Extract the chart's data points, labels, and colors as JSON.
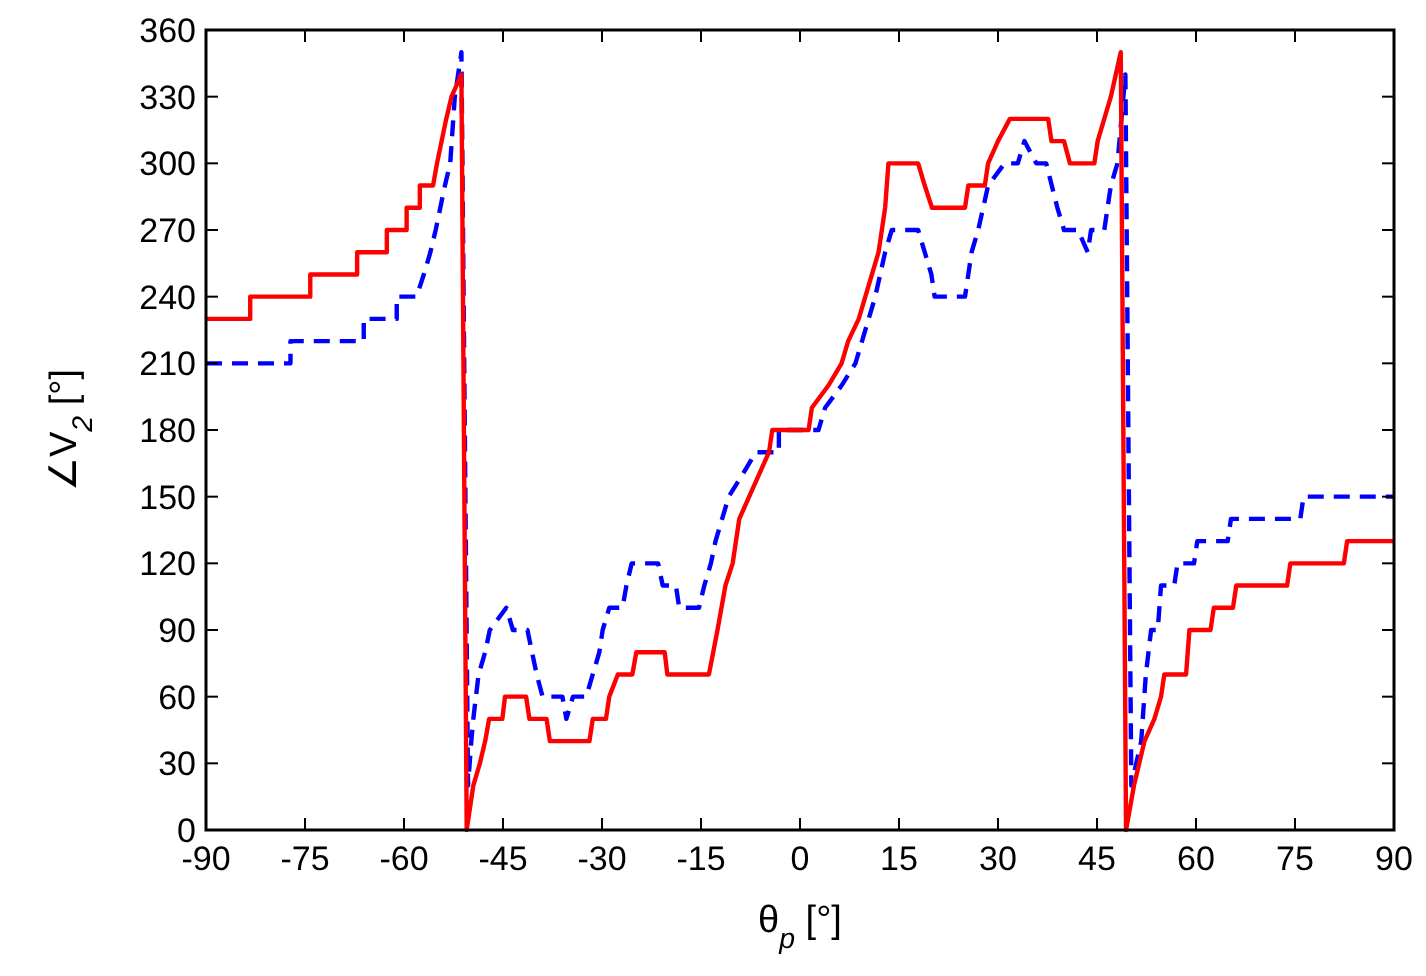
{
  "chart_data": {
    "type": "line",
    "xlabel": "θ$_{p}$ [°]",
    "ylabel": "∠V$_{2}$ [°]",
    "xlim": [
      -90,
      90
    ],
    "xticks": [
      -90,
      -75,
      -60,
      -45,
      -30,
      -15,
      0,
      15,
      30,
      45,
      60,
      75,
      90
    ],
    "ylim": [
      0,
      360
    ],
    "yticks": [
      0,
      30,
      60,
      90,
      120,
      150,
      180,
      210,
      240,
      270,
      300,
      330,
      360
    ],
    "grid": false,
    "series": [
      {
        "color": "#0000ff",
        "line_style": "dashed",
        "x": [
          -90,
          -77.2,
          -77.2,
          -66.1,
          -66.1,
          -61.1,
          -61.1,
          -58.1,
          -57,
          -56,
          -55.2,
          -54.5,
          -53.8,
          -53,
          -52.3,
          -51.3,
          -50.3,
          -49.8,
          -49.5,
          -48.7,
          -47.7,
          -47,
          -44.5,
          -43.5,
          -41.3,
          -40.6,
          -39.9,
          -39,
          -36,
          -35.4,
          -34.4,
          -32.4,
          -31.4,
          -30.4,
          -29.9,
          -28.9,
          -26.9,
          -26.3,
          -25.5,
          -21.5,
          -20.8,
          -18.8,
          -18.3,
          -15.3,
          -14.5,
          -13.5,
          -12.8,
          -11.8,
          -10.8,
          -8.7,
          -6.7,
          -3.2,
          -3.2,
          2.8,
          3.8,
          6.3,
          8.4,
          9.4,
          11.4,
          12.9,
          13.9,
          17.9,
          18.9,
          19.9,
          20.4,
          25,
          26,
          27,
          28.5,
          31,
          33,
          34,
          35.8,
          37.3,
          39,
          40,
          42.1,
          43.6,
          44.1,
          46.1,
          47.1,
          48.1,
          49.3,
          50.2,
          51.7,
          52.4,
          53.2,
          54.2,
          54.7,
          56.7,
          57.2,
          59.7,
          60.2,
          64.8,
          65.3,
          75.8,
          76.3,
          90
        ],
        "values": [
          210,
          210,
          220,
          220,
          230,
          230,
          240,
          240,
          250,
          260,
          270,
          280,
          290,
          300,
          330,
          350,
          20,
          40,
          50,
          70,
          80,
          90,
          100,
          90,
          90,
          80,
          70,
          60,
          60,
          50,
          60,
          60,
          70,
          80,
          90,
          100,
          100,
          110,
          120,
          120,
          110,
          110,
          100,
          100,
          110,
          120,
          130,
          140,
          150,
          160,
          170,
          170,
          180,
          180,
          190,
          200,
          210,
          220,
          240,
          260,
          270,
          270,
          260,
          250,
          240,
          240,
          260,
          270,
          290,
          300,
          300,
          310,
          300,
          300,
          280,
          270,
          270,
          260,
          270,
          270,
          290,
          300,
          340,
          20,
          40,
          70,
          90,
          90,
          110,
          110,
          120,
          120,
          130,
          130,
          140,
          140,
          150,
          150
        ]
      },
      {
        "color": "#ff0000",
        "line_style": "solid",
        "x": [
          -90,
          -83.3,
          -83.3,
          -74.2,
          -74.2,
          -67.1,
          -67.1,
          -62.6,
          -62.6,
          -59.6,
          -59.6,
          -57.6,
          -57.6,
          -55.6,
          -55,
          -54.3,
          -53.6,
          -52.8,
          -51.3,
          -50.5,
          -49.5,
          -48.5,
          -47.7,
          -47.1,
          -45.1,
          -44.7,
          -41.5,
          -41,
          -38.4,
          -37.9,
          -31.9,
          -31.4,
          -29.4,
          -28.9,
          -27.6,
          -25.4,
          -24.8,
          -20.5,
          -20.1,
          -13.8,
          -12.5,
          -11.3,
          -10.2,
          -9.2,
          -7.7,
          -6.2,
          -4.7,
          -4.2,
          1.3,
          1.8,
          4.3,
          6.3,
          7.3,
          8.9,
          9.9,
          10.9,
          11.9,
          12.4,
          12.9,
          13.4,
          17.9,
          18.9,
          20,
          25,
          25.5,
          28,
          28.5,
          30,
          31.8,
          37.6,
          38.1,
          40,
          40.9,
          44.6,
          45.1,
          46.1,
          47.1,
          48.6,
          49.4,
          50.6,
          52.2,
          53.7,
          54.7,
          55.2,
          58.5,
          59,
          62.2,
          62.7,
          65.6,
          66.1,
          73.8,
          74.3,
          82.4,
          82.9,
          90
        ],
        "values": [
          230,
          230,
          240,
          240,
          250,
          250,
          260,
          260,
          270,
          270,
          280,
          280,
          290,
          290,
          300,
          310,
          320,
          330,
          340,
          0,
          20,
          30,
          40,
          50,
          50,
          60,
          60,
          50,
          50,
          40,
          40,
          50,
          50,
          60,
          70,
          70,
          80,
          80,
          70,
          70,
          90,
          110,
          120,
          140,
          150,
          160,
          170,
          180,
          180,
          190,
          200,
          210,
          220,
          230,
          240,
          250,
          260,
          270,
          280,
          300,
          300,
          290,
          280,
          280,
          290,
          290,
          300,
          310,
          320,
          320,
          310,
          310,
          300,
          300,
          310,
          320,
          330,
          350,
          0,
          20,
          40,
          50,
          60,
          70,
          70,
          90,
          90,
          100,
          100,
          110,
          110,
          120,
          120,
          130,
          130
        ]
      }
    ]
  }
}
